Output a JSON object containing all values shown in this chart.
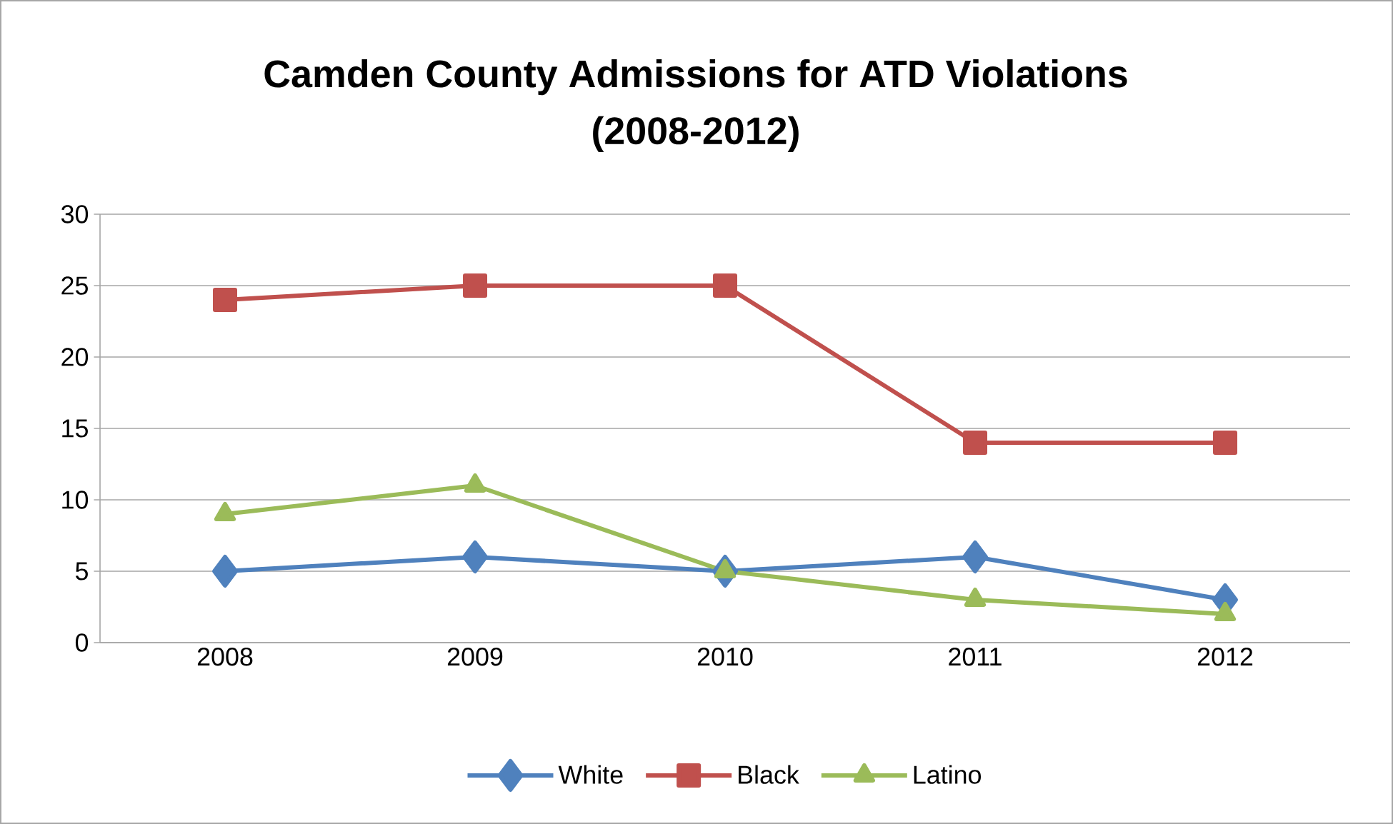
{
  "chart_data": {
    "type": "line",
    "title": "Camden County Admissions for ATD Violations\n(2008-2012)",
    "categories": [
      "2008",
      "2009",
      "2010",
      "2011",
      "2012"
    ],
    "series": [
      {
        "name": "White",
        "color": "#4f81bd",
        "marker": "diamond",
        "values": [
          5,
          6,
          5,
          6,
          3
        ]
      },
      {
        "name": "Black",
        "color": "#c0504d",
        "marker": "square",
        "values": [
          24,
          25,
          25,
          14,
          14
        ]
      },
      {
        "name": "Latino",
        "color": "#9bbb59",
        "marker": "triangle",
        "values": [
          9,
          11,
          5,
          3,
          2
        ]
      }
    ],
    "ylim": [
      0,
      30
    ],
    "yticks": [
      0,
      5,
      10,
      15,
      20,
      25,
      30
    ],
    "grid": "y",
    "legend": "bottom",
    "line_style": "solid"
  }
}
